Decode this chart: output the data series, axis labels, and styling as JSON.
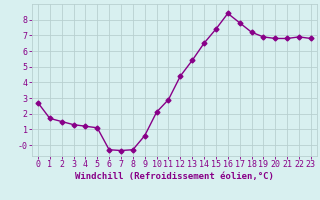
{
  "x": [
    0,
    1,
    2,
    3,
    4,
    5,
    6,
    7,
    8,
    9,
    10,
    11,
    12,
    13,
    14,
    15,
    16,
    17,
    18,
    19,
    20,
    21,
    22,
    23
  ],
  "y": [
    2.7,
    1.7,
    1.5,
    1.3,
    1.2,
    1.1,
    -0.3,
    -0.35,
    -0.3,
    0.6,
    2.1,
    2.9,
    4.4,
    5.4,
    6.5,
    7.4,
    8.4,
    7.8,
    7.2,
    6.9,
    6.8,
    6.8,
    6.9,
    6.8
  ],
  "line_color": "#880088",
  "marker": "D",
  "marker_size": 2.5,
  "xlabel": "Windchill (Refroidissement éolien,°C)",
  "xlim": [
    -0.5,
    23.5
  ],
  "ylim": [
    -0.7,
    9.0
  ],
  "yticks": [
    0,
    1,
    2,
    3,
    4,
    5,
    6,
    7,
    8
  ],
  "ytick_labels": [
    "-0",
    "1",
    "2",
    "3",
    "4",
    "5",
    "6",
    "7",
    "8"
  ],
  "xticks": [
    0,
    1,
    2,
    3,
    4,
    5,
    6,
    7,
    8,
    9,
    10,
    11,
    12,
    13,
    14,
    15,
    16,
    17,
    18,
    19,
    20,
    21,
    22,
    23
  ],
  "bg_color": "#d8f0f0",
  "grid_color": "#b8d0d0",
  "xlabel_fontsize": 6.5,
  "tick_fontsize": 6,
  "line_width": 1.0
}
